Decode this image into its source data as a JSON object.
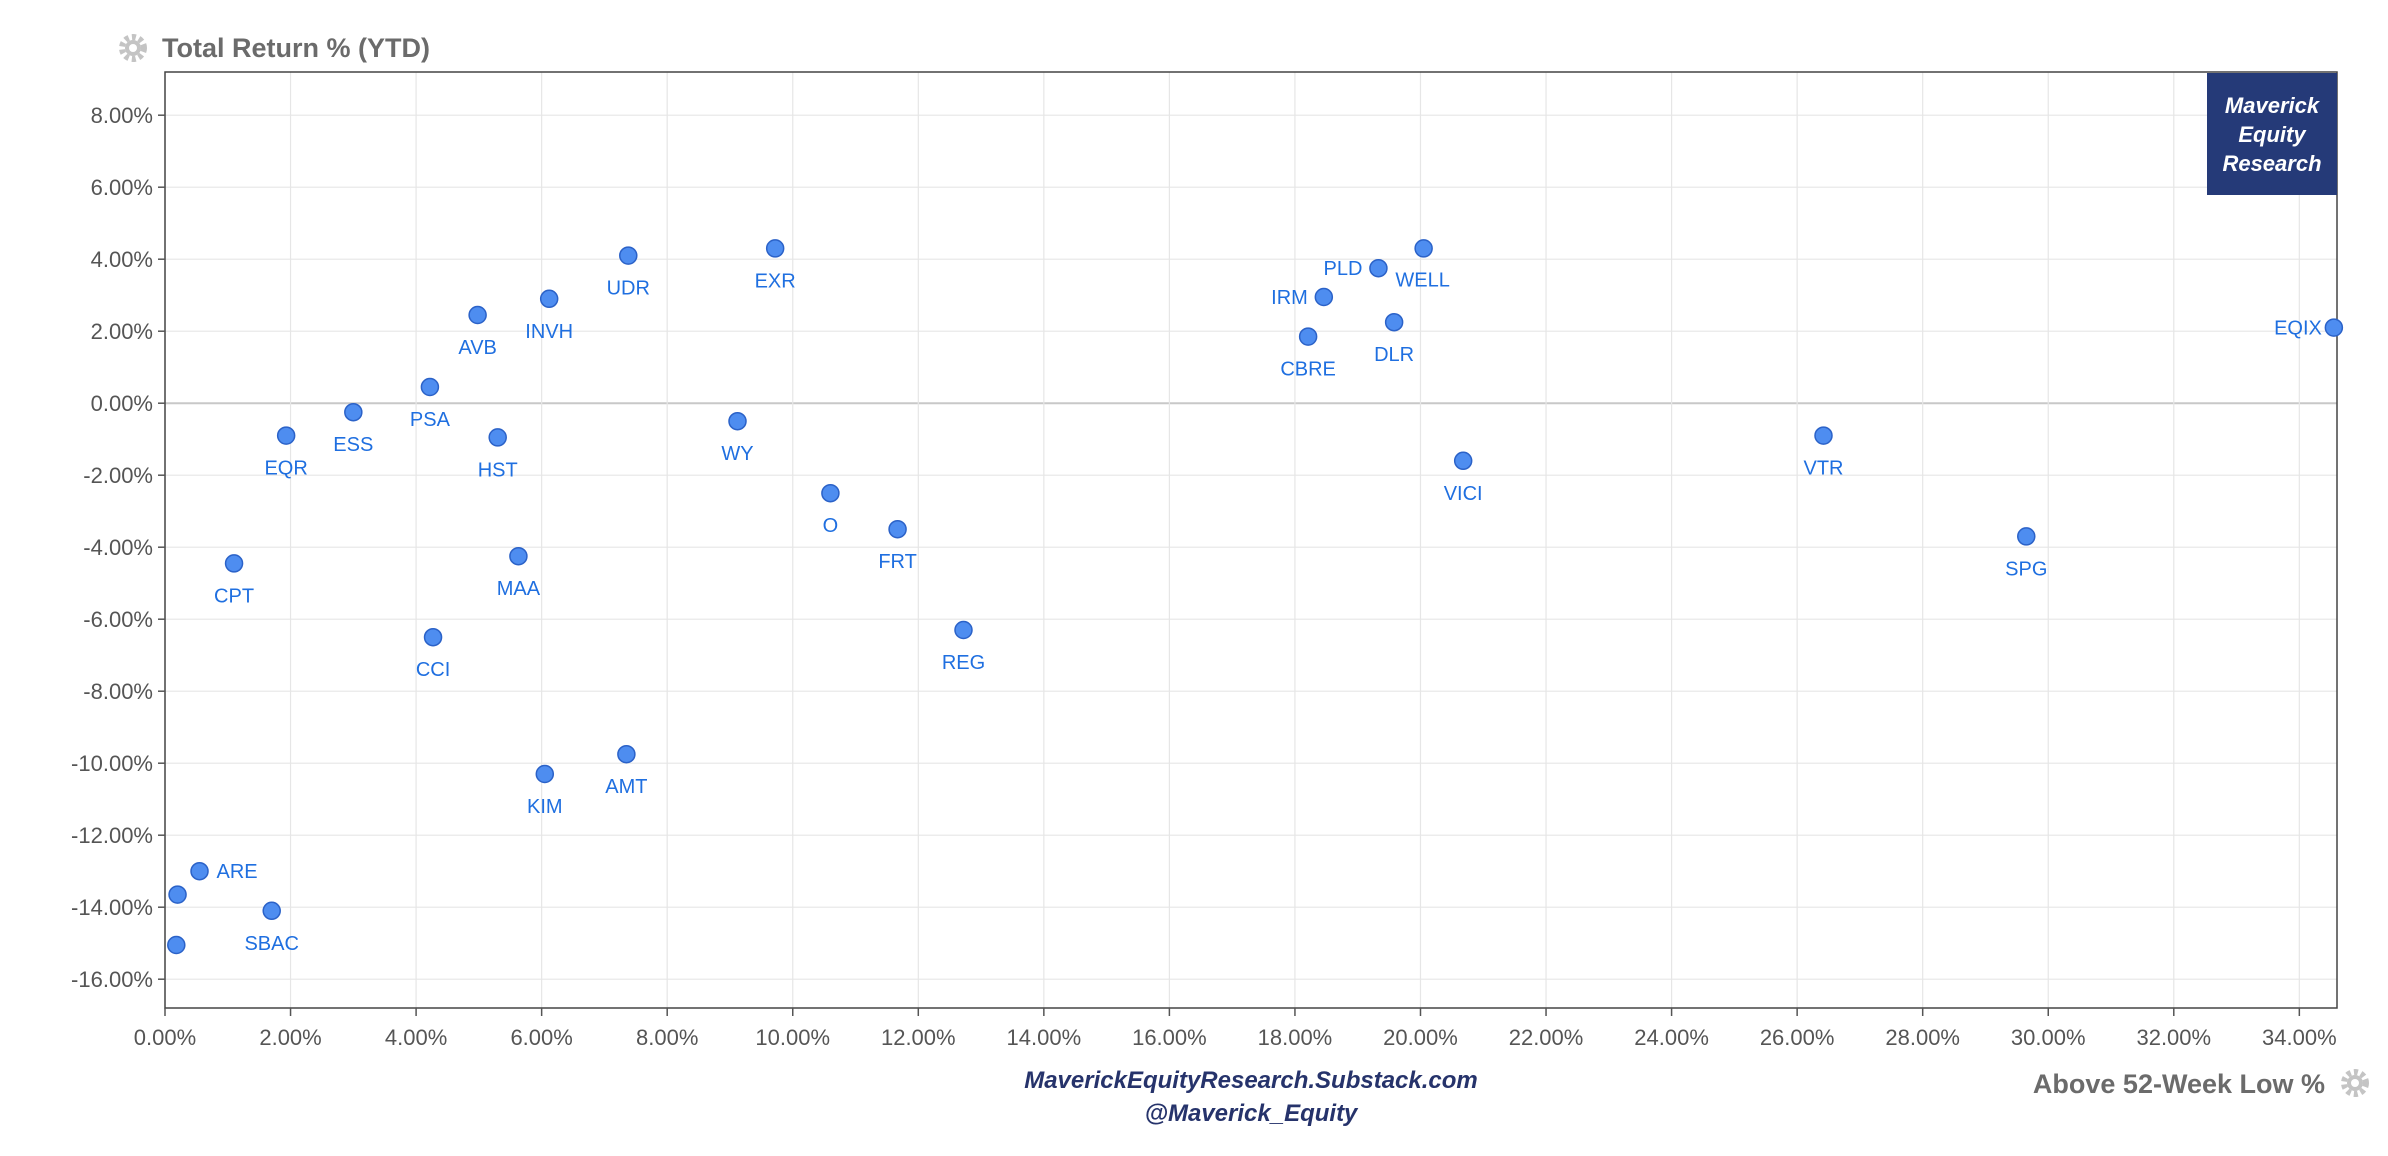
{
  "chart_data": {
    "type": "scatter",
    "title": "",
    "xlabel": "Above 52-Week Low %",
    "ylabel": "Total Return % (YTD)",
    "xlim": [
      0,
      34.6
    ],
    "ylim": [
      -16.8,
      9.2
    ],
    "x_ticks": [
      "0.00%",
      "2.00%",
      "4.00%",
      "6.00%",
      "8.00%",
      "10.00%",
      "12.00%",
      "14.00%",
      "16.00%",
      "18.00%",
      "20.00%",
      "22.00%",
      "24.00%",
      "26.00%",
      "28.00%",
      "30.00%",
      "32.00%",
      "34.00%"
    ],
    "y_ticks": [
      "8.00%",
      "6.00%",
      "4.00%",
      "2.00%",
      "0.00%",
      "-2.00%",
      "-4.00%",
      "-6.00%",
      "-8.00%",
      "-10.00%",
      "-12.00%",
      "-14.00%",
      "-16.00%"
    ],
    "grid": true,
    "points": [
      {
        "label": "EQIX",
        "x": 34.55,
        "y": 2.1
      },
      {
        "label": "SPG",
        "x": 29.65,
        "y": -3.7
      },
      {
        "label": "VTR",
        "x": 26.42,
        "y": -0.9
      },
      {
        "label": "VICI",
        "x": 20.68,
        "y": -1.6
      },
      {
        "label": "WELL",
        "x": 20.05,
        "y": 4.3
      },
      {
        "label": "DLR",
        "x": 19.58,
        "y": 2.25
      },
      {
        "label": "PLD",
        "x": 19.33,
        "y": 3.75
      },
      {
        "label": "IRM",
        "x": 18.46,
        "y": 2.95
      },
      {
        "label": "CBRE",
        "x": 18.21,
        "y": 1.85
      },
      {
        "label": "REG",
        "x": 12.72,
        "y": -6.3
      },
      {
        "label": "FRT",
        "x": 11.67,
        "y": -3.5
      },
      {
        "label": "O",
        "x": 10.6,
        "y": -2.5
      },
      {
        "label": "EXR",
        "x": 9.72,
        "y": 4.3
      },
      {
        "label": "WY",
        "x": 9.12,
        "y": -0.5
      },
      {
        "label": "UDR",
        "x": 7.38,
        "y": 4.1
      },
      {
        "label": "AMT",
        "x": 7.35,
        "y": -9.75
      },
      {
        "label": "INVH",
        "x": 6.12,
        "y": 2.9
      },
      {
        "label": "KIM",
        "x": 6.05,
        "y": -10.3
      },
      {
        "label": "MAA",
        "x": 5.63,
        "y": -4.25
      },
      {
        "label": "HST",
        "x": 5.3,
        "y": -0.95
      },
      {
        "label": "AVB",
        "x": 4.98,
        "y": 2.45
      },
      {
        "label": "CCI",
        "x": 4.27,
        "y": -6.5
      },
      {
        "label": "PSA",
        "x": 4.22,
        "y": 0.45
      },
      {
        "label": "ESS",
        "x": 3.0,
        "y": -0.25
      },
      {
        "label": "EQR",
        "x": 1.93,
        "y": -0.9
      },
      {
        "label": "SBAC",
        "x": 1.7,
        "y": -14.1
      },
      {
        "label": "CPT",
        "x": 1.1,
        "y": -4.45
      },
      {
        "label": "ARE",
        "x": 0.55,
        "y": -13.0
      },
      {
        "label": "",
        "x": 0.2,
        "y": -13.65
      },
      {
        "label": "",
        "x": 0.18,
        "y": -15.05
      }
    ]
  },
  "brand": {
    "lines": [
      "Maverick",
      "Equity",
      "Research"
    ],
    "color": "#253a78"
  },
  "footer": {
    "line1": "MaverickEquityResearch.Substack.com",
    "line2": "@Maverick_Equity"
  },
  "colors": {
    "point_fill": "#4e8df0",
    "point_stroke": "#2b62c8",
    "label": "#1f6fe0",
    "grid": "#e6e6e6",
    "zero_line": "#c8c8c8"
  },
  "icons": {
    "y_title_icon": "gear-icon",
    "x_title_icon": "gear-icon"
  }
}
